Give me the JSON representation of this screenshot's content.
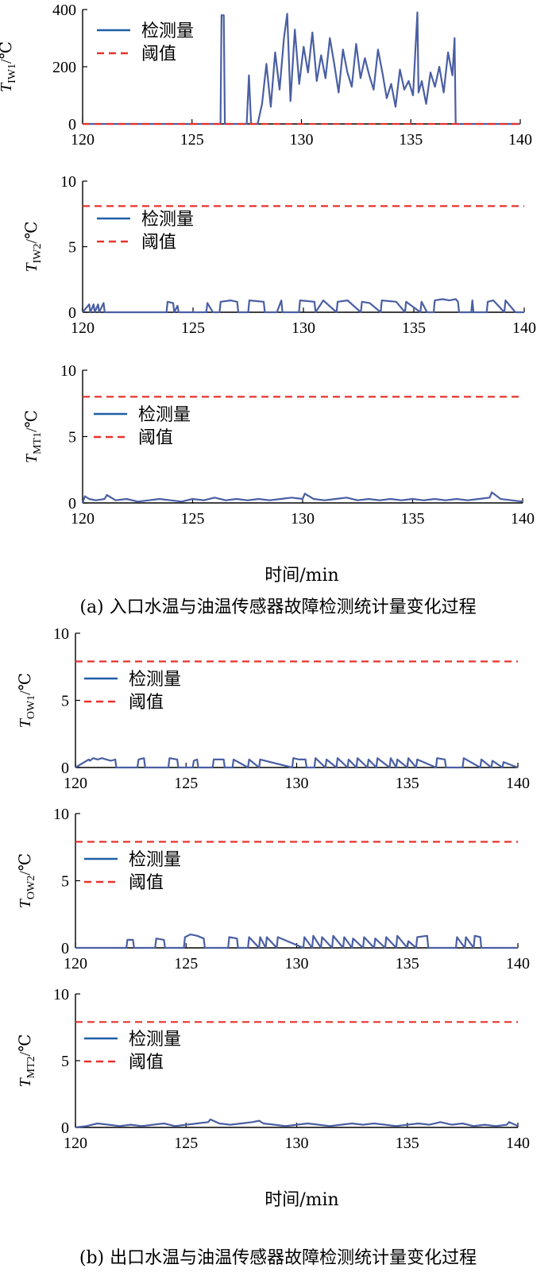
{
  "figure": {
    "caption_a": "(a) 入口水温与油温传感器故障检测统计量变化过程",
    "caption_b": "(b) 出口水温与油温传感器故障检测统计量变化过程",
    "xlabel_a": "时间/min",
    "xlabel_b": "时间/min"
  },
  "colors": {
    "series": "#4a5fa3",
    "threshold": "#e8322d",
    "legend_series": "#1f5fa8"
  },
  "chart_data": [
    {
      "type": "line",
      "ylabel": "T_IW1/℃",
      "xlim": [
        120,
        140
      ],
      "ylim": [
        0,
        400
      ],
      "xticks": [
        120,
        125,
        130,
        135,
        140
      ],
      "yticks": [
        0,
        200,
        400
      ],
      "legend_position": "top-left",
      "series": [
        {
          "name": "检测量",
          "style": "solid",
          "x": [
            120,
            126.3,
            126.35,
            126.45,
            126.5,
            127.5,
            127.6,
            127.7,
            128.0,
            128.2,
            128.4,
            128.6,
            128.8,
            129.0,
            129.2,
            129.35,
            129.5,
            129.7,
            129.9,
            130.1,
            130.3,
            130.5,
            130.7,
            130.9,
            131.1,
            131.3,
            131.5,
            131.7,
            131.9,
            132.1,
            132.3,
            132.5,
            132.7,
            132.9,
            133.1,
            133.3,
            133.5,
            133.7,
            133.9,
            134.1,
            134.3,
            134.5,
            134.7,
            134.9,
            135.1,
            135.3,
            135.35,
            135.5,
            135.7,
            135.9,
            136.1,
            136.3,
            136.5,
            136.7,
            136.9,
            137.0,
            137.05,
            140
          ],
          "y": [
            0,
            0,
            380,
            380,
            0,
            0,
            170,
            0,
            0,
            70,
            210,
            60,
            250,
            120,
            300,
            385,
            80,
            330,
            140,
            270,
            180,
            320,
            150,
            240,
            160,
            300,
            210,
            110,
            260,
            180,
            130,
            280,
            160,
            230,
            170,
            120,
            260,
            180,
            90,
            140,
            60,
            190,
            120,
            150,
            100,
            390,
            110,
            150,
            70,
            180,
            130,
            200,
            110,
            250,
            170,
            300,
            0,
            0
          ]
        },
        {
          "name": "阈值",
          "style": "dashed",
          "x": [
            120,
            140
          ],
          "y": [
            0,
            0
          ]
        }
      ]
    },
    {
      "type": "line",
      "ylabel": "T_IW2/℃",
      "xlim": [
        120,
        140
      ],
      "ylim": [
        0,
        10
      ],
      "xticks": [
        120,
        125,
        130,
        135,
        140
      ],
      "yticks": [
        0,
        5,
        10
      ],
      "legend_position": "top-left",
      "series": [
        {
          "name": "检测量",
          "style": "solid",
          "x": [
            120,
            120.3,
            120.35,
            120.5,
            120.55,
            120.7,
            120.75,
            120.95,
            121,
            123.8,
            123.85,
            124.1,
            124.15,
            124.3,
            124.35,
            125.6,
            125.65,
            125.9,
            126.2,
            126.25,
            126.7,
            127.0,
            127.05,
            127.5,
            127.55,
            128.2,
            128.25,
            128.8,
            129.0,
            129.05,
            129.8,
            129.85,
            130.5,
            130.55,
            130.9,
            131.5,
            131.55,
            132.0,
            132.6,
            132.65,
            133.0,
            133.5,
            133.55,
            134.2,
            134.6,
            134.65,
            135.3,
            135.35,
            135.6,
            135.9,
            135.95,
            136.3,
            136.6,
            136.9,
            137.0,
            137.05,
            137.6,
            137.65,
            137.7,
            138.3,
            138.35,
            138.6,
            139.1,
            139.15,
            139.6,
            140
          ],
          "y": [
            0,
            0.6,
            0,
            0.6,
            0,
            0.6,
            0,
            0.7,
            0,
            0,
            0.8,
            0.7,
            0,
            0.5,
            0,
            0,
            0.7,
            0,
            0,
            0.8,
            0.9,
            0.8,
            0,
            0,
            0.9,
            0.8,
            0,
            0,
            0.9,
            0,
            0,
            0.9,
            0.8,
            0,
            0.9,
            0,
            0.8,
            0.9,
            0,
            0.8,
            0.7,
            0,
            0.9,
            0.8,
            0,
            0.8,
            0,
            0.8,
            0,
            0,
            0.9,
            1.0,
            0.9,
            1.0,
            0.8,
            0,
            0,
            0.9,
            0,
            0,
            0.8,
            0.9,
            0,
            0.9,
            0,
            0
          ]
        },
        {
          "name": "阈值",
          "style": "dashed",
          "x": [
            120,
            140
          ],
          "y": [
            8.1,
            8.1
          ]
        }
      ]
    },
    {
      "type": "line",
      "ylabel": "T_MT1/℃",
      "xlim": [
        120,
        140
      ],
      "ylim": [
        0,
        10
      ],
      "xticks": [
        120,
        125,
        130,
        135,
        140
      ],
      "yticks": [
        0,
        5,
        10
      ],
      "legend_position": "top-left",
      "series": [
        {
          "name": "检测量",
          "style": "solid",
          "x": [
            120,
            120.1,
            120.3,
            120.6,
            121.0,
            121.1,
            121.5,
            122.0,
            122.5,
            123.0,
            123.5,
            124.0,
            124.5,
            125.0,
            125.5,
            126.0,
            126.5,
            127.0,
            127.5,
            128.0,
            128.5,
            129.0,
            129.5,
            130.0,
            130.1,
            130.5,
            131.0,
            131.5,
            132.0,
            132.5,
            133.0,
            133.5,
            134.0,
            134.5,
            135.0,
            135.5,
            136.0,
            136.5,
            137.0,
            137.5,
            138.0,
            138.5,
            138.6,
            139.0,
            139.5,
            140
          ],
          "y": [
            0,
            0.5,
            0.3,
            0.2,
            0.3,
            0.6,
            0.2,
            0.3,
            0.1,
            0.2,
            0.3,
            0.2,
            0.1,
            0.3,
            0.2,
            0.4,
            0.2,
            0.3,
            0.2,
            0.3,
            0.2,
            0.3,
            0.4,
            0.3,
            0.7,
            0.3,
            0.2,
            0.3,
            0.4,
            0.2,
            0.3,
            0.2,
            0.3,
            0.2,
            0.3,
            0.2,
            0.3,
            0.2,
            0.3,
            0.2,
            0.3,
            0.4,
            0.8,
            0.3,
            0.2,
            0.1
          ]
        },
        {
          "name": "阈值",
          "style": "dashed",
          "x": [
            120,
            140
          ],
          "y": [
            8.0,
            8.0
          ]
        }
      ]
    },
    {
      "type": "line",
      "ylabel": "T_OW1/℃",
      "xlim": [
        120,
        140
      ],
      "ylim": [
        0,
        10
      ],
      "xticks": [
        120,
        125,
        130,
        135,
        140
      ],
      "yticks": [
        0,
        5,
        10
      ],
      "legend_position": "top-left",
      "series": [
        {
          "name": "检测量",
          "style": "solid",
          "x": [
            120,
            120.6,
            120.65,
            120.8,
            121.0,
            121.2,
            121.4,
            121.6,
            121.8,
            121.85,
            122.8,
            122.85,
            123.1,
            123.15,
            124.2,
            124.25,
            124.6,
            124.65,
            125.3,
            125.35,
            125.5,
            125.55,
            126.2,
            126.25,
            126.7,
            126.75,
            127.1,
            127.15,
            127.8,
            127.85,
            128.3,
            128.35,
            129.8,
            129.85,
            130.1,
            130.4,
            130.45,
            130.8,
            130.85,
            131.3,
            131.35,
            131.8,
            131.85,
            132.3,
            132.35,
            132.7,
            132.75,
            133.2,
            133.25,
            133.6,
            133.65,
            134.2,
            134.25,
            134.5,
            134.55,
            135.0,
            135.05,
            135.4,
            135.45,
            136.3,
            136.35,
            136.7,
            136.75,
            137.5,
            137.55,
            138.3,
            138.35,
            138.8,
            138.85,
            139.3,
            139.35,
            140
          ],
          "y": [
            0,
            0.6,
            0.5,
            0.7,
            0.6,
            0.7,
            0.6,
            0.5,
            0.6,
            0,
            0,
            0.6,
            0.7,
            0,
            0,
            0.7,
            0.6,
            0,
            0,
            0.5,
            0.6,
            0,
            0,
            0.6,
            0.6,
            0,
            0,
            0.6,
            0,
            0.6,
            0,
            0.6,
            0,
            0.7,
            0.6,
            0.6,
            0,
            0,
            0.7,
            0,
            0.6,
            0,
            0.7,
            0,
            0.6,
            0,
            0.7,
            0,
            0.6,
            0,
            0.7,
            0,
            0.7,
            0,
            0.6,
            0,
            0.7,
            0,
            0.6,
            0,
            0.7,
            0.6,
            0,
            0,
            0.7,
            0,
            0.6,
            0,
            0.5,
            0,
            0.4,
            0
          ]
        },
        {
          "name": "阈值",
          "style": "dashed",
          "x": [
            120,
            140
          ],
          "y": [
            7.9,
            7.9
          ]
        }
      ]
    },
    {
      "type": "line",
      "ylabel": "T_OW2/℃",
      "xlim": [
        120,
        140
      ],
      "ylim": [
        0,
        10
      ],
      "xticks": [
        120,
        125,
        130,
        135,
        140
      ],
      "yticks": [
        0,
        5,
        10
      ],
      "legend_position": "top-left",
      "series": [
        {
          "name": "检测量",
          "style": "solid",
          "x": [
            120,
            122.3,
            122.35,
            122.6,
            122.65,
            123.6,
            123.65,
            124.0,
            124.05,
            124.9,
            124.95,
            125.2,
            125.5,
            125.8,
            125.85,
            126.9,
            126.95,
            127.3,
            127.35,
            127.8,
            127.85,
            128.3,
            128.35,
            128.6,
            128.65,
            129.1,
            129.15,
            130.3,
            130.35,
            130.7,
            130.75,
            131.1,
            131.15,
            131.6,
            131.65,
            132.1,
            132.15,
            132.5,
            132.55,
            133.0,
            133.05,
            133.5,
            133.55,
            134.0,
            134.05,
            134.5,
            134.55,
            135.0,
            135.05,
            135.4,
            135.45,
            135.9,
            135.95,
            137.2,
            137.25,
            137.6,
            137.65,
            138.0,
            138.05,
            138.3,
            138.35,
            140
          ],
          "y": [
            0,
            0,
            0.6,
            0.6,
            0,
            0,
            0.7,
            0.6,
            0,
            0,
            0.8,
            1.0,
            0.9,
            0.7,
            0,
            0,
            0.8,
            0.7,
            0,
            0,
            0.8,
            0,
            0.8,
            0,
            0.8,
            0,
            0.8,
            0,
            0.8,
            0,
            0.9,
            0,
            0.8,
            0,
            0.9,
            0,
            0.8,
            0,
            0.7,
            0,
            0.8,
            0,
            0.7,
            0,
            0.8,
            0,
            0.9,
            0,
            0.5,
            0,
            0.8,
            0.9,
            0,
            0,
            0.8,
            0,
            0.8,
            0,
            0.9,
            0.8,
            0,
            0
          ]
        },
        {
          "name": "阈值",
          "style": "dashed",
          "x": [
            120,
            140
          ],
          "y": [
            7.9,
            7.9
          ]
        }
      ]
    },
    {
      "type": "line",
      "ylabel": "T_MT2/℃",
      "xlim": [
        120,
        140
      ],
      "ylim": [
        0,
        10
      ],
      "xticks": [
        120,
        125,
        130,
        135,
        140
      ],
      "yticks": [
        0,
        5,
        10
      ],
      "legend_position": "top-left",
      "series": [
        {
          "name": "检测量",
          "style": "solid",
          "x": [
            120,
            120.5,
            121.0,
            121.5,
            122.0,
            122.5,
            123.0,
            123.5,
            124.0,
            124.5,
            125.0,
            125.5,
            126.0,
            126.1,
            126.5,
            127.0,
            127.5,
            128.0,
            128.3,
            128.5,
            129.0,
            129.5,
            130.0,
            130.5,
            131.0,
            131.5,
            132.0,
            132.5,
            133.0,
            133.5,
            134.0,
            134.5,
            135.0,
            135.5,
            136.0,
            136.5,
            137.0,
            137.5,
            138.0,
            138.5,
            139.0,
            139.5,
            139.6,
            140
          ],
          "y": [
            0,
            0.1,
            0.3,
            0.2,
            0.1,
            0.2,
            0.1,
            0.2,
            0.3,
            0.1,
            0.2,
            0.3,
            0.4,
            0.6,
            0.3,
            0.2,
            0.3,
            0.4,
            0.5,
            0.3,
            0.2,
            0.1,
            0.2,
            0.3,
            0.2,
            0.1,
            0.2,
            0.3,
            0.2,
            0.3,
            0.2,
            0.1,
            0.2,
            0.3,
            0.2,
            0.4,
            0.2,
            0.3,
            0.1,
            0.2,
            0.1,
            0.2,
            0.4,
            0.1
          ]
        },
        {
          "name": "阈值",
          "style": "dashed",
          "x": [
            120,
            140
          ],
          "y": [
            7.9,
            7.9
          ]
        }
      ]
    }
  ]
}
